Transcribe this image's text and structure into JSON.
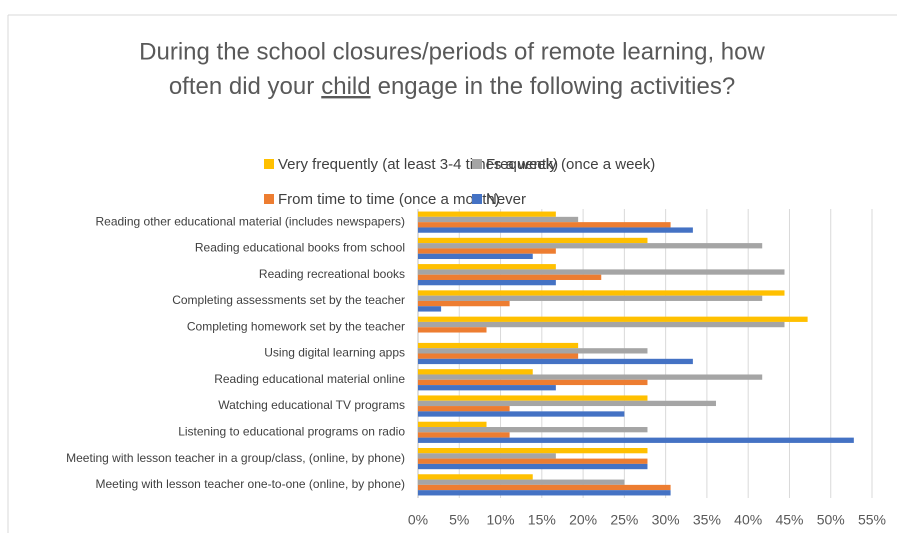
{
  "chart_data": {
    "type": "hbar",
    "title": [
      "During the school closures/periods of remote learning, how",
      "often did your",
      "child",
      "engage in the following activities?"
    ],
    "categories": [
      "Reading other educational material (includes newspapers)",
      "Reading educational books from school",
      "Reading recreational books",
      "Completing assessments set by the teacher",
      "Completing homework set by the teacher",
      "Using digital learning apps",
      "Reading educational material online",
      "Watching educational TV programs",
      "Listening to educational programs on radio",
      "Meeting with lesson teacher in a group/class, (online, by phone)",
      "Meeting with lesson teacher one-to-one (online, by phone)"
    ],
    "series": [
      {
        "name": "Very frequently (at least 3-4 times a week)",
        "color": "#FFC000",
        "values": [
          16.7,
          27.8,
          16.7,
          44.4,
          47.2,
          19.4,
          13.9,
          27.8,
          8.3,
          27.8,
          13.9
        ]
      },
      {
        "name": "Frequently (once a week)",
        "color": "#A5A5A5",
        "values": [
          19.4,
          41.7,
          44.4,
          41.7,
          44.4,
          27.8,
          41.7,
          36.1,
          27.8,
          16.7,
          25.0
        ]
      },
      {
        "name": "From time to time (once a month)",
        "color": "#ED7D31",
        "values": [
          30.6,
          16.7,
          22.2,
          11.1,
          8.3,
          19.4,
          27.8,
          11.1,
          11.1,
          27.8,
          30.6
        ]
      },
      {
        "name": "Never",
        "color": "#4472C4",
        "values": [
          33.3,
          13.9,
          16.7,
          2.8,
          0,
          33.3,
          16.7,
          25.0,
          52.8,
          27.8,
          30.6
        ]
      }
    ],
    "xlim": [
      0,
      55
    ],
    "xticks": [
      {
        "value": 0,
        "label": "0%"
      },
      {
        "value": 5,
        "label": "5%"
      },
      {
        "value": 10,
        "label": "10%"
      },
      {
        "value": 15,
        "label": "15%"
      },
      {
        "value": 20,
        "label": "20%"
      },
      {
        "value": 25,
        "label": "25%"
      },
      {
        "value": 30,
        "label": "30%"
      },
      {
        "value": 35,
        "label": "35%"
      },
      {
        "value": 40,
        "label": "40%"
      },
      {
        "value": 45,
        "label": "45%"
      },
      {
        "value": 50,
        "label": "50%"
      },
      {
        "value": 55,
        "label": "55%"
      }
    ],
    "grid": true
  }
}
